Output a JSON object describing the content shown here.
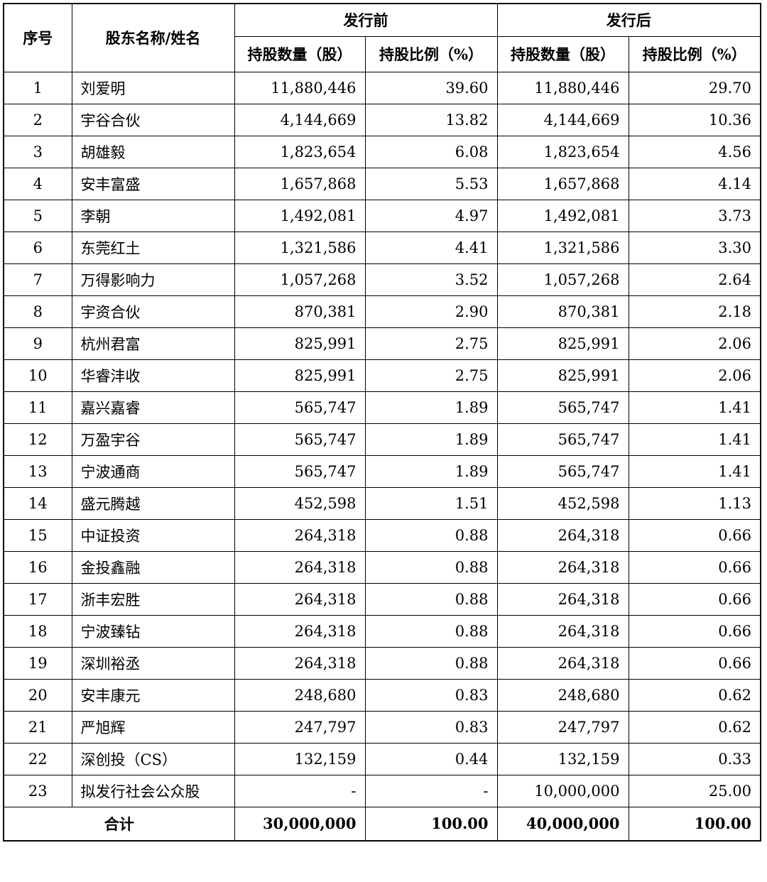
{
  "header": {
    "seq": "序号",
    "name": "股东名称/姓名",
    "before": "发行前",
    "after": "发行后",
    "shares": "持股数量（股）",
    "ratio": "持股比例（%）"
  },
  "rows": [
    {
      "no": "1",
      "name": "刘爱明",
      "before_shares": "11,880,446",
      "before_ratio": "39.60",
      "after_shares": "11,880,446",
      "after_ratio": "29.70"
    },
    {
      "no": "2",
      "name": "宇谷合伙",
      "before_shares": "4,144,669",
      "before_ratio": "13.82",
      "after_shares": "4,144,669",
      "after_ratio": "10.36"
    },
    {
      "no": "3",
      "name": "胡雄毅",
      "before_shares": "1,823,654",
      "before_ratio": "6.08",
      "after_shares": "1,823,654",
      "after_ratio": "4.56"
    },
    {
      "no": "4",
      "name": "安丰富盛",
      "before_shares": "1,657,868",
      "before_ratio": "5.53",
      "after_shares": "1,657,868",
      "after_ratio": "4.14"
    },
    {
      "no": "5",
      "name": "李朝",
      "before_shares": "1,492,081",
      "before_ratio": "4.97",
      "after_shares": "1,492,081",
      "after_ratio": "3.73"
    },
    {
      "no": "6",
      "name": "东莞红土",
      "before_shares": "1,321,586",
      "before_ratio": "4.41",
      "after_shares": "1,321,586",
      "after_ratio": "3.30"
    },
    {
      "no": "7",
      "name": "万得影响力",
      "before_shares": "1,057,268",
      "before_ratio": "3.52",
      "after_shares": "1,057,268",
      "after_ratio": "2.64"
    },
    {
      "no": "8",
      "name": "宇资合伙",
      "before_shares": "870,381",
      "before_ratio": "2.90",
      "after_shares": "870,381",
      "after_ratio": "2.18"
    },
    {
      "no": "9",
      "name": "杭州君富",
      "before_shares": "825,991",
      "before_ratio": "2.75",
      "after_shares": "825,991",
      "after_ratio": "2.06"
    },
    {
      "no": "10",
      "name": "华睿沣收",
      "before_shares": "825,991",
      "before_ratio": "2.75",
      "after_shares": "825,991",
      "after_ratio": "2.06"
    },
    {
      "no": "11",
      "name": "嘉兴嘉睿",
      "before_shares": "565,747",
      "before_ratio": "1.89",
      "after_shares": "565,747",
      "after_ratio": "1.41"
    },
    {
      "no": "12",
      "name": "万盈宇谷",
      "before_shares": "565,747",
      "before_ratio": "1.89",
      "after_shares": "565,747",
      "after_ratio": "1.41"
    },
    {
      "no": "13",
      "name": "宁波通商",
      "before_shares": "565,747",
      "before_ratio": "1.89",
      "after_shares": "565,747",
      "after_ratio": "1.41"
    },
    {
      "no": "14",
      "name": "盛元腾越",
      "before_shares": "452,598",
      "before_ratio": "1.51",
      "after_shares": "452,598",
      "after_ratio": "1.13"
    },
    {
      "no": "15",
      "name": "中证投资",
      "before_shares": "264,318",
      "before_ratio": "0.88",
      "after_shares": "264,318",
      "after_ratio": "0.66"
    },
    {
      "no": "16",
      "name": "金投鑫融",
      "before_shares": "264,318",
      "before_ratio": "0.88",
      "after_shares": "264,318",
      "after_ratio": "0.66"
    },
    {
      "no": "17",
      "name": "浙丰宏胜",
      "before_shares": "264,318",
      "before_ratio": "0.88",
      "after_shares": "264,318",
      "after_ratio": "0.66"
    },
    {
      "no": "18",
      "name": "宁波臻钻",
      "before_shares": "264,318",
      "before_ratio": "0.88",
      "after_shares": "264,318",
      "after_ratio": "0.66"
    },
    {
      "no": "19",
      "name": "深圳裕丞",
      "before_shares": "264,318",
      "before_ratio": "0.88",
      "after_shares": "264,318",
      "after_ratio": "0.66"
    },
    {
      "no": "20",
      "name": "安丰康元",
      "before_shares": "248,680",
      "before_ratio": "0.83",
      "after_shares": "248,680",
      "after_ratio": "0.62"
    },
    {
      "no": "21",
      "name": "严旭辉",
      "before_shares": "247,797",
      "before_ratio": "0.83",
      "after_shares": "247,797",
      "after_ratio": "0.62"
    },
    {
      "no": "22",
      "name": "深创投（CS）",
      "before_shares": "132,159",
      "before_ratio": "0.44",
      "after_shares": "132,159",
      "after_ratio": "0.33"
    },
    {
      "no": "23",
      "name": "拟发行社会公众股",
      "before_shares": "-",
      "before_ratio": "-",
      "after_shares": "10,000,000",
      "after_ratio": "25.00"
    }
  ],
  "total": {
    "label": "合计",
    "before_shares": "30,000,000",
    "before_ratio": "100.00",
    "after_shares": "40,000,000",
    "after_ratio": "100.00"
  }
}
